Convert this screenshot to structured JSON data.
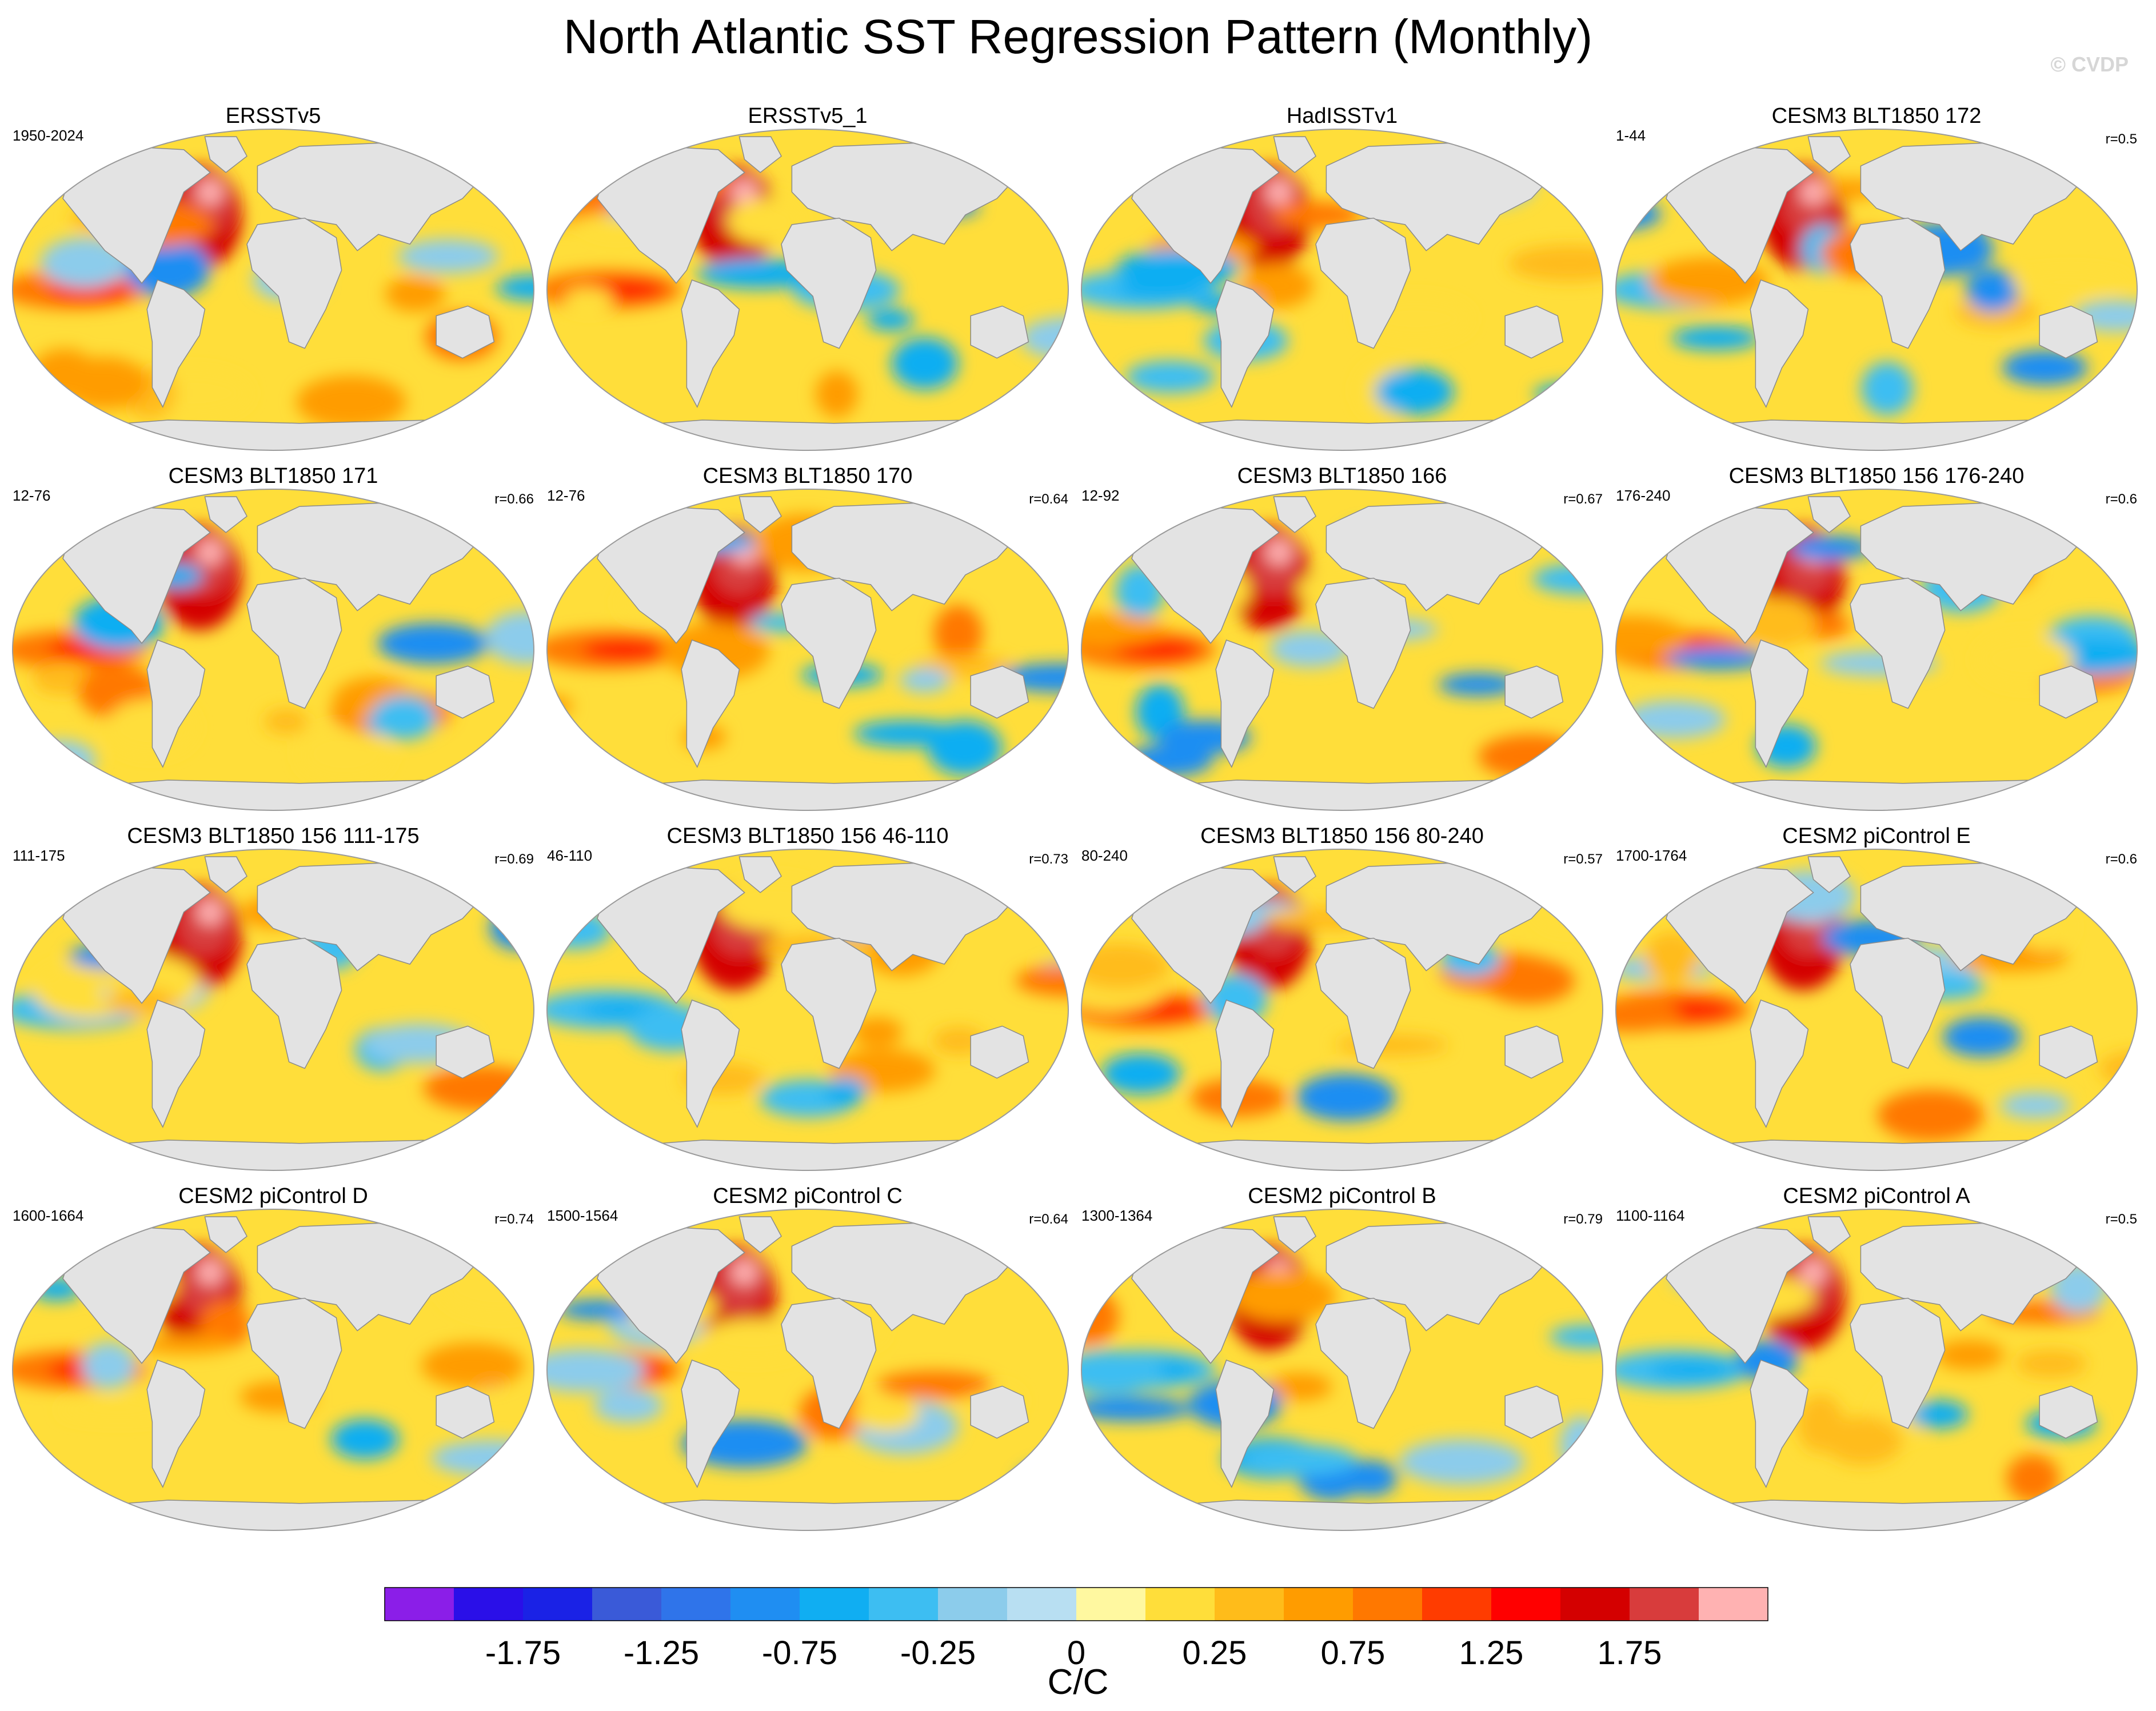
{
  "title": "North Atlantic SST Regression Pattern (Monthly)",
  "watermark": "© CVDP",
  "panels": [
    {
      "title": "ERSSTv5",
      "left": "1950-2024",
      "right": ""
    },
    {
      "title": "ERSSTv5_1",
      "left": "",
      "right": ""
    },
    {
      "title": "HadISSTv1",
      "left": "",
      "right": ""
    },
    {
      "title": "CESM3 BLT1850 172",
      "left": "1-44",
      "right": "r=0.5"
    },
    {
      "title": "CESM3 BLT1850 171",
      "left": "12-76",
      "right": "r=0.66"
    },
    {
      "title": "CESM3 BLT1850 170",
      "left": "12-76",
      "right": "r=0.64"
    },
    {
      "title": "CESM3 BLT1850 166",
      "left": "12-92",
      "right": "r=0.67"
    },
    {
      "title": "CESM3 BLT1850 156 176-240",
      "left": "176-240",
      "right": "r=0.6"
    },
    {
      "title": "CESM3 BLT1850 156 111-175",
      "left": "111-175",
      "right": "r=0.69"
    },
    {
      "title": "CESM3 BLT1850 156 46-110",
      "left": "46-110",
      "right": "r=0.73"
    },
    {
      "title": "CESM3 BLT1850 156 80-240",
      "left": "80-240",
      "right": "r=0.57"
    },
    {
      "title": "CESM2 piControl E",
      "left": "1700-1764",
      "right": "r=0.6"
    },
    {
      "title": "CESM2 piControl D",
      "left": "1600-1664",
      "right": "r=0.74"
    },
    {
      "title": "CESM2 piControl C",
      "left": "1500-1564",
      "right": "r=0.64"
    },
    {
      "title": "CESM2 piControl B",
      "left": "1300-1364",
      "right": "r=0.79"
    },
    {
      "title": "CESM2 piControl A",
      "left": "1100-1164",
      "right": "r=0.5"
    }
  ],
  "colorbar": {
    "colors": [
      "#8b1ee8",
      "#2a0fe8",
      "#1a22e6",
      "#3a5ad8",
      "#2f74ea",
      "#1f8ef2",
      "#10aef2",
      "#3dbef2",
      "#8ccceb",
      "#b8dff2",
      "#fff8a0",
      "#ffde3a",
      "#ffbc1a",
      "#ff9c00",
      "#ff7800",
      "#ff3c00",
      "#ff0000",
      "#d40000",
      "#d83c3c",
      "#ffb2b2"
    ],
    "tick_labels": [
      "-1.75",
      "-1.25",
      "-0.75",
      "-0.25",
      "0",
      "0.25",
      "0.75",
      "1.25",
      "1.75"
    ],
    "units": "C/C"
  },
  "chart_data": {
    "type": "heatmap",
    "title": "North Atlantic SST Regression Pattern (Monthly)",
    "units": "C/C",
    "color_levels": [
      -2.0,
      -1.75,
      -1.5,
      -1.25,
      -1.0,
      -0.75,
      -0.5,
      -0.25,
      -0.1,
      0,
      0.1,
      0.25,
      0.5,
      0.75,
      1.0,
      1.25,
      1.5,
      1.75,
      2.0
    ],
    "colorbar_labels": [
      -1.75,
      -1.25,
      -0.75,
      -0.25,
      0,
      0.25,
      0.75,
      1.25,
      1.75
    ],
    "projection": "global Robinson/Winkel-style oval map",
    "panel_count": 16
  }
}
